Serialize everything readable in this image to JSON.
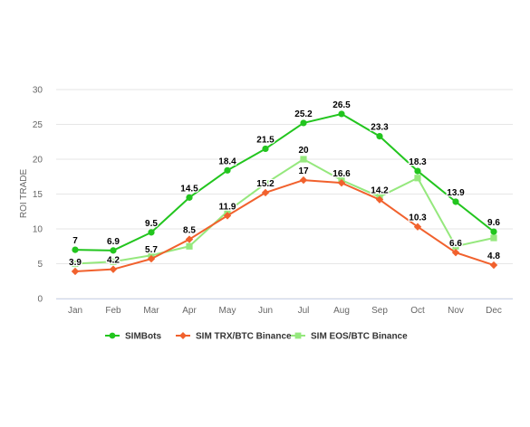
{
  "chart_data": {
    "type": "line",
    "categories": [
      "Jan",
      "Feb",
      "Mar",
      "Apr",
      "May",
      "Jun",
      "Jul",
      "Aug",
      "Sep",
      "Oct",
      "Nov",
      "Dec"
    ],
    "ylabel": "ROI TRADE",
    "ylim": [
      0,
      30
    ],
    "yticks": [
      0,
      5,
      10,
      15,
      20,
      25,
      30
    ],
    "grid": true,
    "legend": "bottom",
    "series": [
      {
        "name": "SIMBots",
        "color": "#22c51e",
        "marker": "circle",
        "values": [
          7,
          6.9,
          9.5,
          14.5,
          18.4,
          21.5,
          25.2,
          26.5,
          23.3,
          18.3,
          13.9,
          9.6
        ],
        "labels": [
          "7",
          "6.9",
          "9.5",
          "14.5",
          "18.4",
          "21.5",
          "25.2",
          "26.5",
          "23.3",
          "18.3",
          "13.9",
          "9.6"
        ]
      },
      {
        "name": "SIM TRX/BTC Binance",
        "color": "#f1612d",
        "marker": "diamond",
        "values": [
          3.9,
          4.2,
          5.7,
          8.5,
          11.9,
          15.2,
          17,
          16.6,
          14.2,
          10.3,
          6.6,
          4.8
        ],
        "labels": [
          "3.9",
          "4.2",
          "5.7",
          "8.5",
          "11.9",
          "15.2",
          "17",
          "16.6",
          "14.2",
          "10.3",
          "6.6",
          "4.8"
        ]
      },
      {
        "name": "SIM EOS/BTC Binance",
        "color": "#95e87d",
        "marker": "square",
        "values": [
          5,
          5.3,
          6.2,
          7.5,
          12.5,
          16.5,
          20,
          17,
          14.6,
          17.3,
          7.5,
          8.7
        ],
        "labels": [
          "",
          "",
          "",
          "",
          "",
          "",
          "20",
          "",
          "",
          "",
          "",
          ""
        ]
      }
    ]
  }
}
